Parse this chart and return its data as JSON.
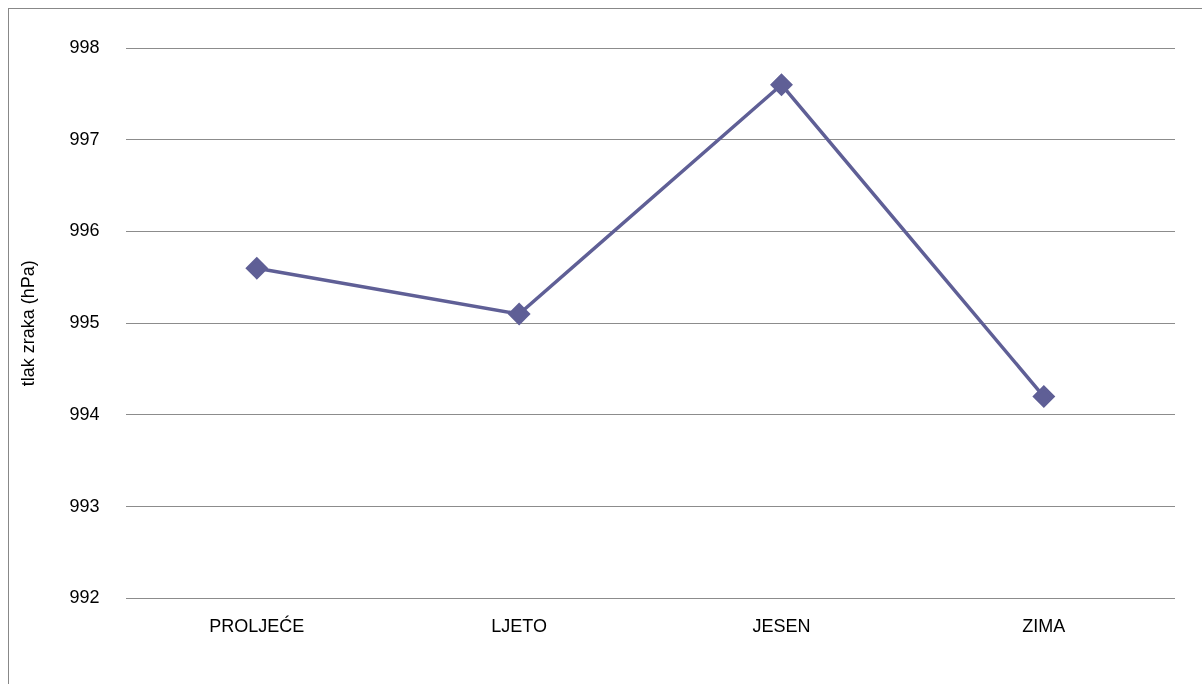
{
  "chart_data": {
    "type": "line",
    "ylabel": "tlak zraka (hPa)",
    "categories": [
      "PROLJEĆE",
      "LJETO",
      "JESEN",
      "ZIMA"
    ],
    "series": [
      {
        "color": "#5f5f96",
        "values": [
          995.6,
          995.1,
          997.6,
          994.2
        ]
      }
    ],
    "ylim": [
      992,
      998
    ],
    "yticks": [
      992,
      993,
      994,
      995,
      996,
      997,
      998
    ],
    "grid": "y",
    "legend": false,
    "marker": "diamond",
    "line_style": "solid"
  }
}
